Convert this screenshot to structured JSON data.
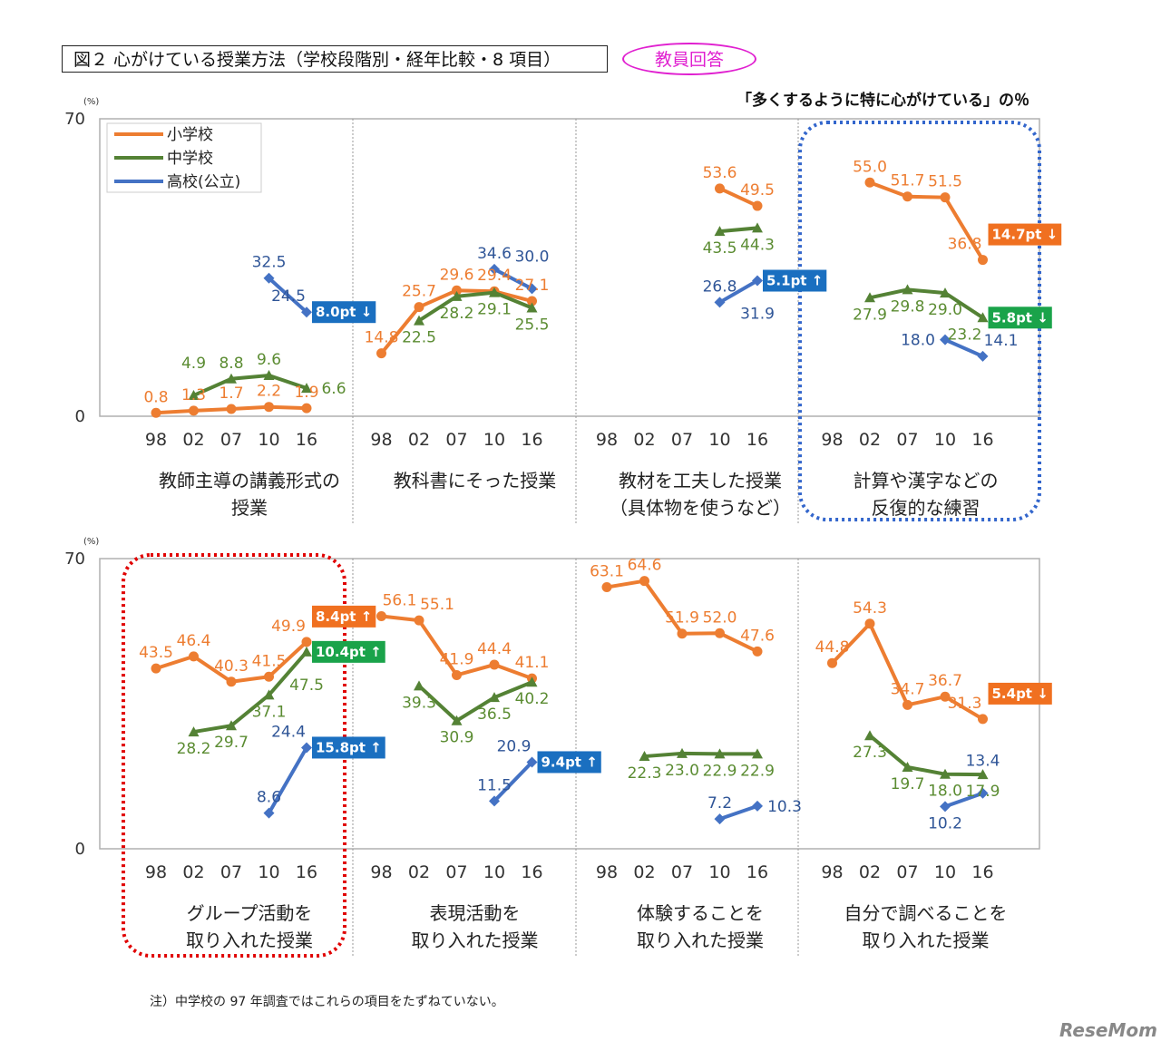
{
  "title": "図２ 心がけている授業方法（学校段階別・経年比較・8 項目）",
  "respondent_badge": "教員回答",
  "subtitle": "「多くするように特に心がけている」の％",
  "note": "注）中学校の 97 年調査ではこれらの項目をたずねていない。",
  "watermark": "ReseMom",
  "colors": {
    "elementary": "#ED7D31",
    "junior_high": "#548235",
    "high_school": "#4472C4",
    "highlight_blue": "#3366CC",
    "highlight_red": "#E00000"
  },
  "chart_data": {
    "type": "line",
    "unit_label": "(%)",
    "ylim": [
      0,
      70
    ],
    "y_ticks": [
      "0",
      "70"
    ],
    "x_ticks": [
      "98",
      "02",
      "07",
      "10",
      "16"
    ],
    "legend": {
      "placement": "top-left",
      "entries": [
        "小学校",
        "中学校",
        "高校(公立)"
      ]
    },
    "series_names": [
      "小学校",
      "中学校",
      "高校(公立)"
    ],
    "panels": [
      {
        "label": [
          "教師主導の講義形式の",
          "授業"
        ],
        "row": 0,
        "highlight": null,
        "series": [
          [
            0.8,
            1.3,
            1.7,
            2.2,
            1.9
          ],
          [
            null,
            4.9,
            8.8,
            9.6,
            6.6
          ],
          [
            null,
            null,
            null,
            32.5,
            24.5
          ]
        ],
        "badges": [
          {
            "series": 2,
            "text": "8.0pt ↓"
          }
        ]
      },
      {
        "label": [
          "教科書にそった授業"
        ],
        "row": 0,
        "highlight": null,
        "series": [
          [
            14.8,
            25.7,
            29.6,
            29.4,
            27.1
          ],
          [
            null,
            22.5,
            28.2,
            29.1,
            25.5
          ],
          [
            null,
            null,
            null,
            34.6,
            30.0
          ]
        ],
        "badges": []
      },
      {
        "label": [
          "教材を工夫した授業",
          "（具体物を使うなど）"
        ],
        "row": 0,
        "highlight": null,
        "series": [
          [
            null,
            null,
            null,
            53.6,
            49.5
          ],
          [
            null,
            null,
            null,
            43.5,
            44.3
          ],
          [
            null,
            null,
            null,
            26.8,
            31.9
          ]
        ],
        "badges": [
          {
            "series": 2,
            "text": "5.1pt ↑"
          }
        ]
      },
      {
        "label": [
          "計算や漢字などの",
          "反復的な練習"
        ],
        "row": 0,
        "highlight": "blue",
        "series": [
          [
            null,
            55.0,
            51.7,
            51.5,
            36.8
          ],
          [
            null,
            27.9,
            29.8,
            29.0,
            23.2
          ],
          [
            null,
            null,
            null,
            18.0,
            14.1
          ]
        ],
        "badges": [
          {
            "series": 0,
            "text": "14.7pt ↓"
          },
          {
            "series": 1,
            "text": "5.8pt ↓"
          }
        ]
      },
      {
        "label": [
          "グループ活動を",
          "取り入れた授業"
        ],
        "row": 1,
        "highlight": "red",
        "series": [
          [
            43.5,
            46.4,
            40.3,
            41.5,
            49.9
          ],
          [
            null,
            28.2,
            29.7,
            37.1,
            47.5
          ],
          [
            null,
            null,
            null,
            8.6,
            24.4
          ]
        ],
        "badges": [
          {
            "series": 0,
            "text": "8.4pt ↑"
          },
          {
            "series": 1,
            "text": "10.4pt ↑"
          },
          {
            "series": 2,
            "text": "15.8pt ↑"
          }
        ]
      },
      {
        "label": [
          "表現活動を",
          "取り入れた授業"
        ],
        "row": 1,
        "highlight": null,
        "series": [
          [
            56.1,
            55.1,
            41.9,
            44.4,
            41.1
          ],
          [
            null,
            39.3,
            30.9,
            36.5,
            40.2
          ],
          [
            null,
            null,
            null,
            11.5,
            20.9
          ]
        ],
        "badges": [
          {
            "series": 2,
            "text": "9.4pt ↑"
          }
        ]
      },
      {
        "label": [
          "体験することを",
          "取り入れた授業"
        ],
        "row": 1,
        "highlight": null,
        "series": [
          [
            63.1,
            64.6,
            51.9,
            52.0,
            47.6
          ],
          [
            null,
            22.3,
            23.0,
            22.9,
            22.9
          ],
          [
            null,
            null,
            null,
            7.2,
            10.3
          ]
        ],
        "badges": []
      },
      {
        "label": [
          "自分で調べることを",
          "取り入れた授業"
        ],
        "row": 1,
        "highlight": null,
        "series": [
          [
            44.8,
            54.3,
            34.7,
            36.7,
            31.3
          ],
          [
            null,
            27.3,
            19.7,
            18.0,
            17.9
          ],
          [
            null,
            null,
            null,
            10.2,
            13.4
          ]
        ],
        "badges": [
          {
            "series": 0,
            "text": "5.4pt ↓"
          }
        ]
      }
    ]
  }
}
